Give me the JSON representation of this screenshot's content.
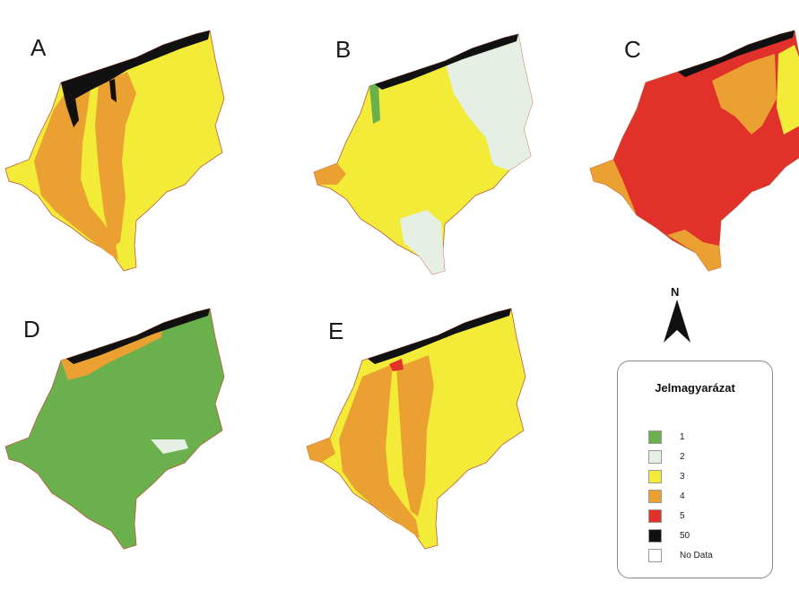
{
  "panels": {
    "a": "A",
    "b": "B",
    "c": "C",
    "d": "D",
    "e": "E"
  },
  "north": "N",
  "legend": {
    "title": "Jelmagyarázat",
    "items": [
      {
        "label": "1",
        "color": "#6ab04c"
      },
      {
        "label": "2",
        "color": "#e6efe3"
      },
      {
        "label": "3",
        "color": "#f2ec38"
      },
      {
        "label": "4",
        "color": "#eba131"
      },
      {
        "label": "5",
        "color": "#e2302a"
      },
      {
        "label": "50",
        "color": "#111111"
      },
      {
        "label": "No Data",
        "color": "#ffffff"
      }
    ]
  },
  "dominant_class": {
    "a": "3",
    "b": "3",
    "c": "5",
    "d": "1",
    "e": "3"
  }
}
